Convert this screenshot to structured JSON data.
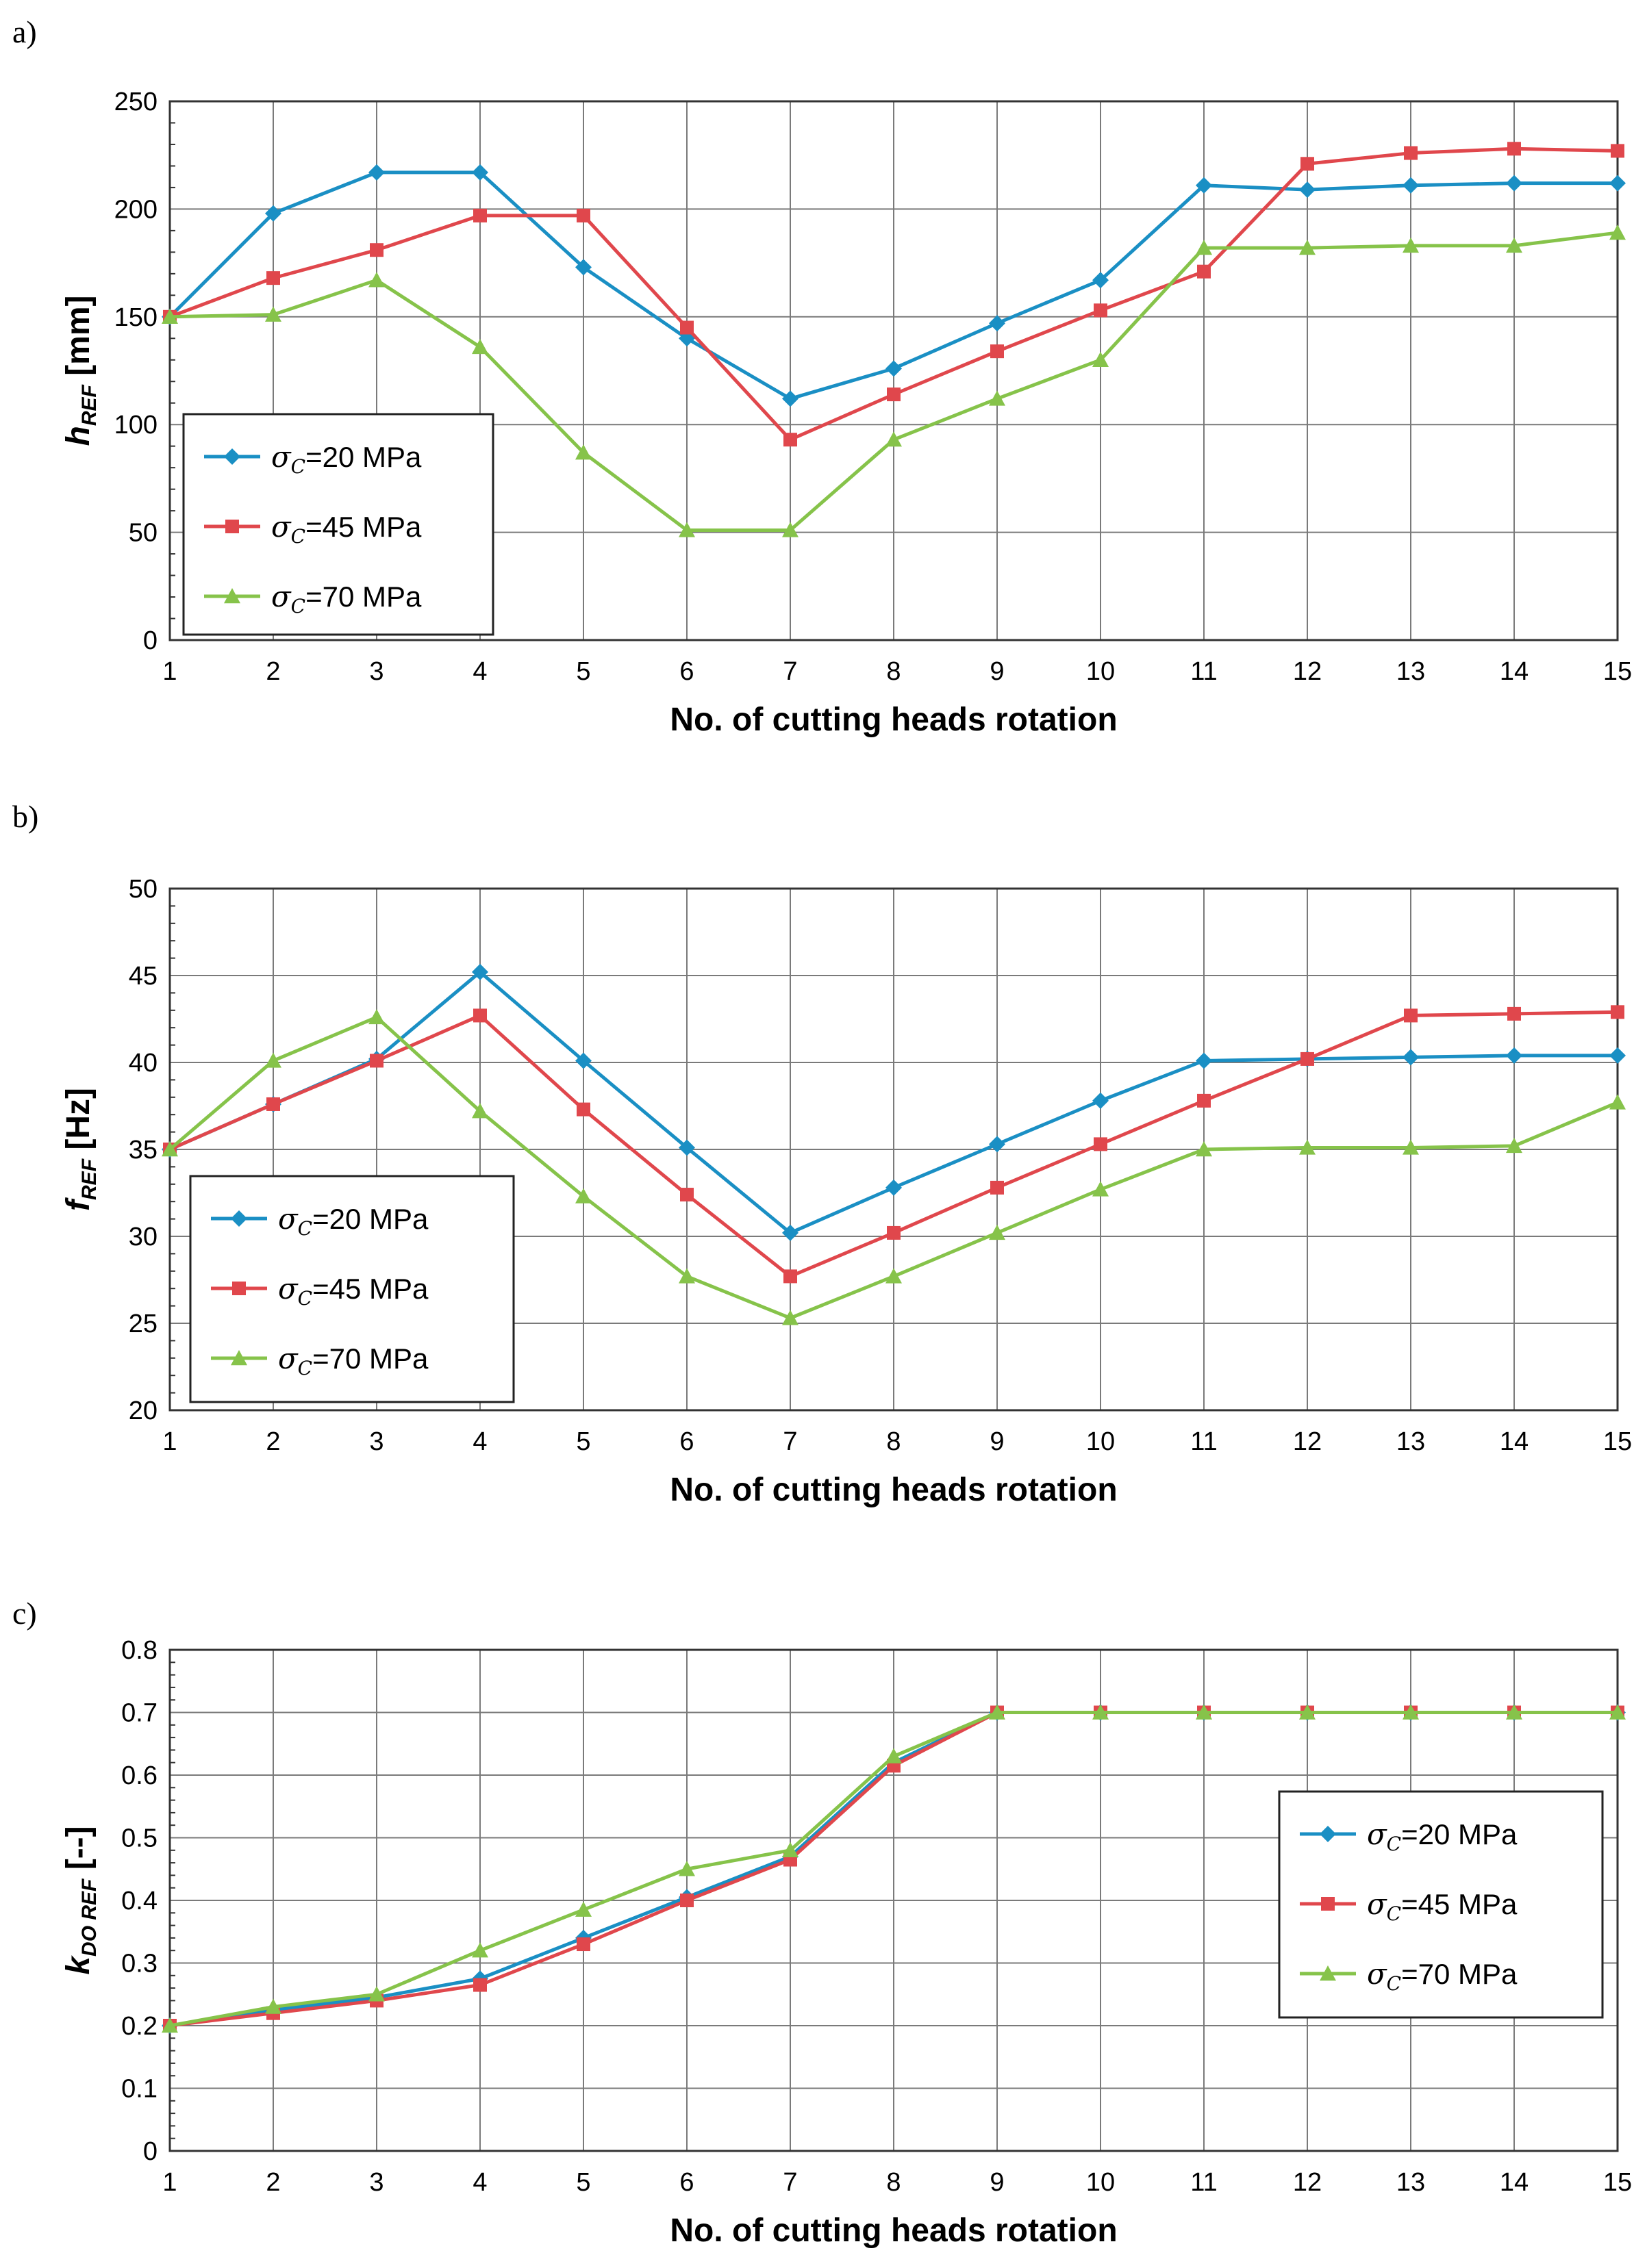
{
  "chart_data": [
    {
      "type": "line",
      "panel_label": "a)",
      "title": "",
      "xlabel": "No. of cutting heads rotation",
      "ylabel": {
        "main": "h",
        "sub": "REF",
        "unit": "[mm]"
      },
      "x": [
        1,
        2,
        3,
        4,
        5,
        6,
        7,
        8,
        9,
        10,
        11,
        12,
        13,
        14,
        15
      ],
      "ylim": [
        0,
        250
      ],
      "yticks": [
        0,
        50,
        100,
        150,
        200,
        250
      ],
      "ytick_labels": [
        "0",
        "50",
        "100",
        "150",
        "200",
        "250"
      ],
      "grid": true,
      "legend_position": "bottom-left",
      "series": [
        {
          "name": "σC=20 MPa",
          "sigma": "σ",
          "sub": "C",
          "rest": "=20 MPa",
          "color": "#1a8fc4",
          "marker": "diamond",
          "values": [
            150,
            198,
            217,
            217,
            173,
            140,
            112,
            126,
            147,
            167,
            211,
            209,
            211,
            212,
            212
          ]
        },
        {
          "name": "σC=45 MPa",
          "sigma": "σ",
          "sub": "C",
          "rest": "=45 MPa",
          "color": "#e0474c",
          "marker": "square",
          "values": [
            150,
            168,
            181,
            197,
            197,
            145,
            93,
            114,
            134,
            153,
            171,
            221,
            226,
            228,
            227
          ]
        },
        {
          "name": "σC=70 MPa",
          "sigma": "σ",
          "sub": "C",
          "rest": "=70 MPa",
          "color": "#86c34a",
          "marker": "triangle",
          "values": [
            150,
            151,
            167,
            136,
            87,
            51,
            51,
            93,
            112,
            130,
            182,
            182,
            183,
            183,
            189
          ]
        }
      ]
    },
    {
      "type": "line",
      "panel_label": "b)",
      "title": "",
      "xlabel": "No. of cutting heads rotation",
      "ylabel": {
        "main": "f",
        "sub": "REF",
        "unit": "[Hz]"
      },
      "x": [
        1,
        2,
        3,
        4,
        5,
        6,
        7,
        8,
        9,
        10,
        11,
        12,
        13,
        14,
        15
      ],
      "ylim": [
        20,
        50
      ],
      "yticks": [
        20,
        25,
        30,
        35,
        40,
        45,
        50
      ],
      "ytick_labels": [
        "20",
        "25",
        "30",
        "35",
        "40",
        "45",
        "50"
      ],
      "grid": true,
      "legend_position": "bottom-left",
      "series": [
        {
          "name": "σC=20 MPa",
          "sigma": "σ",
          "sub": "C",
          "rest": "=20 MPa",
          "color": "#1a8fc4",
          "marker": "diamond",
          "values": [
            35.0,
            37.6,
            40.2,
            45.2,
            40.1,
            35.1,
            30.2,
            32.8,
            35.3,
            37.8,
            40.1,
            40.2,
            40.3,
            40.4,
            40.4
          ]
        },
        {
          "name": "σC=45 MPa",
          "sigma": "σ",
          "sub": "C",
          "rest": "=45 MPa",
          "color": "#e0474c",
          "marker": "square",
          "values": [
            35.0,
            37.6,
            40.1,
            42.7,
            37.3,
            32.4,
            27.7,
            30.2,
            32.8,
            35.3,
            37.8,
            40.2,
            42.7,
            42.8,
            42.9
          ]
        },
        {
          "name": "σC=70 MPa",
          "sigma": "σ",
          "sub": "C",
          "rest": "=70 MPa",
          "color": "#86c34a",
          "marker": "triangle",
          "values": [
            35.0,
            40.1,
            42.6,
            37.2,
            32.3,
            27.7,
            25.3,
            27.7,
            30.2,
            32.7,
            35.0,
            35.1,
            35.1,
            35.2,
            37.7
          ]
        }
      ]
    },
    {
      "type": "line",
      "panel_label": "c)",
      "title": "",
      "xlabel": "No. of cutting heads rotation",
      "ylabel": {
        "main": "k",
        "sub": "DO REF",
        "unit": "[--]"
      },
      "x": [
        1,
        2,
        3,
        4,
        5,
        6,
        7,
        8,
        9,
        10,
        11,
        12,
        13,
        14,
        15
      ],
      "ylim": [
        0,
        0.8
      ],
      "yticks": [
        0,
        0.1,
        0.2,
        0.3,
        0.4,
        0.5,
        0.6,
        0.7,
        0.8
      ],
      "ytick_labels": [
        "0",
        "0.1",
        "0.2",
        "0.3",
        "0.4",
        "0.5",
        "0.6",
        "0.7",
        "0.8"
      ],
      "grid": true,
      "legend_position": "bottom-right",
      "series": [
        {
          "name": "σC=20 MPa",
          "sigma": "σ",
          "sub": "C",
          "rest": "=20 MPa",
          "color": "#1a8fc4",
          "marker": "diamond",
          "values": [
            0.2,
            0.225,
            0.245,
            0.275,
            0.34,
            0.405,
            0.47,
            0.62,
            0.7,
            0.7,
            0.7,
            0.7,
            0.7,
            0.7,
            0.7
          ]
        },
        {
          "name": "σC=45 MPa",
          "sigma": "σ",
          "sub": "C",
          "rest": "=45 MPa",
          "color": "#e0474c",
          "marker": "square",
          "values": [
            0.2,
            0.22,
            0.24,
            0.265,
            0.33,
            0.4,
            0.465,
            0.615,
            0.7,
            0.7,
            0.7,
            0.7,
            0.7,
            0.7,
            0.7
          ]
        },
        {
          "name": "σC=70 MPa",
          "sigma": "σ",
          "sub": "C",
          "rest": "=70 MPa",
          "color": "#86c34a",
          "marker": "triangle",
          "values": [
            0.2,
            0.23,
            0.25,
            0.32,
            0.385,
            0.45,
            0.48,
            0.63,
            0.7,
            0.7,
            0.7,
            0.7,
            0.7,
            0.7,
            0.7
          ]
        }
      ]
    }
  ]
}
